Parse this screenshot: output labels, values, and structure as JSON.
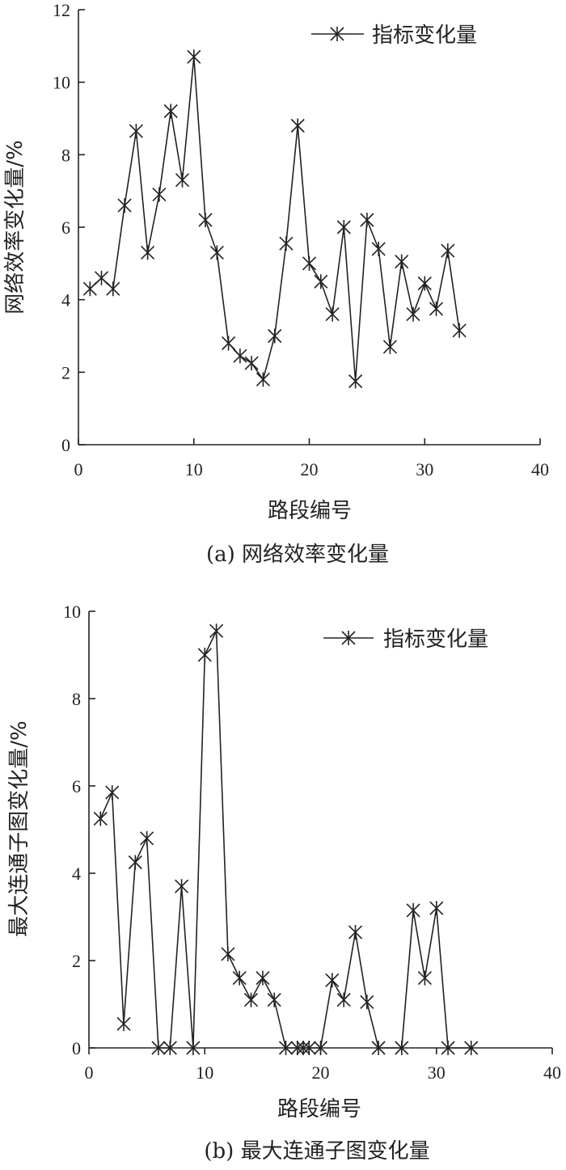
{
  "chart_data": [
    {
      "type": "line",
      "caption": "(a) 网络效率变化量",
      "xlabel": "路段编号",
      "ylabel": "网络效率变化量/%",
      "xlim": [
        0,
        40
      ],
      "ylim": [
        0,
        12
      ],
      "xticks": [
        0,
        10,
        20,
        30,
        40
      ],
      "yticks": [
        0,
        2,
        4,
        6,
        8,
        10,
        12
      ],
      "legend": "top-right",
      "series": [
        {
          "name": "指标变化量",
          "x": [
            1,
            2,
            3,
            4,
            5,
            6,
            7,
            8,
            9,
            10,
            11,
            12,
            13,
            14,
            15,
            16,
            17,
            18,
            19,
            20,
            21,
            22,
            23,
            24,
            25,
            26,
            27,
            28,
            29,
            30,
            31,
            32,
            33
          ],
          "y": [
            4.3,
            4.6,
            4.3,
            6.6,
            8.65,
            5.3,
            6.9,
            9.2,
            7.3,
            10.7,
            6.2,
            5.3,
            2.8,
            2.45,
            2.25,
            1.8,
            3.0,
            5.55,
            8.8,
            5.0,
            4.5,
            3.6,
            6.0,
            1.75,
            6.2,
            5.4,
            2.7,
            5.05,
            3.6,
            4.45,
            3.75,
            5.35,
            3.15
          ]
        }
      ]
    },
    {
      "type": "line",
      "caption": "(b) 最大连通子图变化量",
      "xlabel": "路段编号",
      "ylabel": "最大连通子图变化量/%",
      "xlim": [
        0,
        40
      ],
      "ylim": [
        0,
        10
      ],
      "xticks": [
        0,
        10,
        20,
        30,
        40
      ],
      "yticks": [
        0,
        2,
        4,
        6,
        8,
        10
      ],
      "legend": "top-right",
      "series": [
        {
          "name": "指标变化量",
          "x": [
            1,
            2,
            3,
            4,
            5,
            6,
            7,
            8,
            9,
            10,
            11,
            12,
            13,
            14,
            15,
            16,
            17,
            18,
            18.5,
            19,
            20,
            21,
            22,
            23,
            24,
            25,
            27,
            28,
            29,
            30,
            31,
            33
          ],
          "y": [
            5.25,
            5.85,
            0.55,
            4.25,
            4.8,
            0,
            0,
            3.7,
            0,
            9.0,
            9.55,
            2.15,
            1.6,
            1.1,
            1.6,
            1.1,
            0,
            0,
            0,
            0,
            0,
            1.55,
            1.1,
            2.65,
            1.05,
            0,
            0,
            3.15,
            1.6,
            3.2,
            0,
            0
          ]
        }
      ]
    }
  ]
}
